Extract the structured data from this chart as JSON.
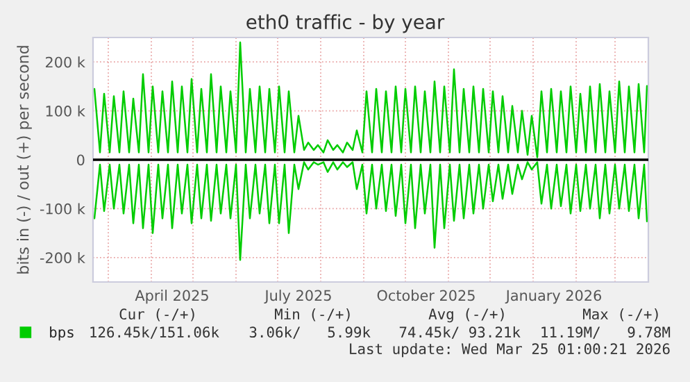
{
  "chart_data": {
    "type": "line",
    "title": "eth0 traffic - by year",
    "ylabel": "bits in (-) / out (+) per second",
    "x": [
      "2025-02-19",
      "2025-02-23",
      "2025-02-26",
      "2025-03-02",
      "2025-03-05",
      "2025-03-09",
      "2025-03-12",
      "2025-03-16",
      "2025-03-19",
      "2025-03-23",
      "2025-03-26",
      "2025-03-30",
      "2025-04-02",
      "2025-04-06",
      "2025-04-09",
      "2025-04-13",
      "2025-04-16",
      "2025-04-20",
      "2025-04-23",
      "2025-04-27",
      "2025-04-30",
      "2025-05-04",
      "2025-05-07",
      "2025-05-11",
      "2025-05-14",
      "2025-05-18",
      "2025-05-21",
      "2025-05-25",
      "2025-05-28",
      "2025-06-01",
      "2025-06-04",
      "2025-06-08",
      "2025-06-11",
      "2025-06-15",
      "2025-06-18",
      "2025-06-22",
      "2025-06-25",
      "2025-06-29",
      "2025-07-02",
      "2025-07-06",
      "2025-07-09",
      "2025-07-13",
      "2025-07-16",
      "2025-07-20",
      "2025-07-23",
      "2025-07-27",
      "2025-07-30",
      "2025-08-03",
      "2025-08-06",
      "2025-08-10",
      "2025-08-13",
      "2025-08-17",
      "2025-08-20",
      "2025-08-24",
      "2025-08-27",
      "2025-08-31",
      "2025-09-03",
      "2025-09-07",
      "2025-09-10",
      "2025-09-14",
      "2025-09-17",
      "2025-09-21",
      "2025-09-24",
      "2025-09-28",
      "2025-10-01",
      "2025-10-05",
      "2025-10-08",
      "2025-10-12",
      "2025-10-15",
      "2025-10-19",
      "2025-10-22",
      "2025-10-26",
      "2025-10-29",
      "2025-11-02",
      "2025-11-05",
      "2025-11-09",
      "2025-11-12",
      "2025-11-16",
      "2025-11-19",
      "2025-11-23",
      "2025-11-26",
      "2025-11-30",
      "2025-12-03",
      "2025-12-07",
      "2025-12-10",
      "2025-12-14",
      "2025-12-17",
      "2025-12-21",
      "2025-12-24",
      "2025-12-28",
      "2025-12-31",
      "2026-01-04",
      "2026-01-07",
      "2026-01-11",
      "2026-01-14",
      "2026-01-18",
      "2026-01-21",
      "2026-01-25",
      "2026-01-28",
      "2026-02-01",
      "2026-02-04",
      "2026-02-08",
      "2026-02-11",
      "2026-02-15",
      "2026-02-18",
      "2026-02-22",
      "2026-02-25",
      "2026-03-01",
      "2026-03-04",
      "2026-03-08",
      "2026-03-11",
      "2026-03-15",
      "2026-03-18",
      "2026-03-22",
      "2026-03-24"
    ],
    "series": [
      {
        "name": "bps",
        "color": "#00cc00",
        "values": [
          145000,
          15000,
          135000,
          15000,
          130000,
          15000,
          140000,
          15000,
          125000,
          15000,
          175000,
          15000,
          150000,
          15000,
          140000,
          15000,
          160000,
          15000,
          150000,
          15000,
          165000,
          15000,
          145000,
          15000,
          175000,
          15000,
          150000,
          15000,
          140000,
          15000,
          240000,
          15000,
          145000,
          15000,
          150000,
          15000,
          145000,
          15000,
          150000,
          15000,
          140000,
          15000,
          90000,
          20000,
          35000,
          20000,
          30000,
          15000,
          40000,
          20000,
          30000,
          15000,
          35000,
          20000,
          60000,
          15000,
          140000,
          15000,
          145000,
          15000,
          140000,
          15000,
          150000,
          15000,
          145000,
          15000,
          150000,
          15000,
          140000,
          15000,
          160000,
          15000,
          150000,
          15000,
          185000,
          15000,
          145000,
          15000,
          150000,
          15000,
          145000,
          15000,
          140000,
          15000,
          130000,
          15000,
          110000,
          15000,
          100000,
          10000,
          90000,
          5000,
          140000,
          15000,
          145000,
          15000,
          140000,
          15000,
          150000,
          15000,
          135000,
          15000,
          150000,
          15000,
          155000,
          15000,
          140000,
          15000,
          160000,
          15000,
          150000,
          15000,
          155000,
          15000,
          151000
        ]
      },
      {
        "color": "#00cc00",
        "values": [
          -120000,
          -10000,
          -105000,
          -10000,
          -100000,
          -10000,
          -110000,
          -10000,
          -130000,
          -10000,
          -140000,
          -10000,
          -150000,
          -10000,
          -120000,
          -10000,
          -140000,
          -10000,
          -110000,
          -10000,
          -130000,
          -10000,
          -120000,
          -10000,
          -125000,
          -10000,
          -110000,
          -10000,
          -120000,
          -10000,
          -205000,
          -10000,
          -120000,
          -10000,
          -110000,
          -10000,
          -130000,
          -10000,
          -130000,
          -10000,
          -150000,
          -10000,
          -60000,
          -5000,
          -20000,
          -5000,
          -10000,
          -5000,
          -25000,
          -5000,
          -20000,
          -5000,
          -15000,
          -5000,
          -60000,
          -10000,
          -110000,
          -10000,
          -100000,
          -10000,
          -105000,
          -10000,
          -115000,
          -10000,
          -130000,
          -10000,
          -140000,
          -10000,
          -110000,
          -10000,
          -180000,
          -10000,
          -140000,
          -10000,
          -125000,
          -10000,
          -120000,
          -10000,
          -110000,
          -10000,
          -100000,
          -10000,
          -85000,
          -10000,
          -80000,
          -10000,
          -70000,
          -10000,
          -40000,
          -5000,
          -20000,
          -5000,
          -90000,
          -10000,
          -100000,
          -10000,
          -95000,
          -10000,
          -110000,
          -10000,
          -105000,
          -10000,
          -100000,
          -10000,
          -120000,
          -10000,
          -110000,
          -10000,
          -100000,
          -10000,
          -105000,
          -10000,
          -120000,
          -10000,
          -126000
        ]
      }
    ],
    "xlim": [
      "2025-02-18",
      "2026-03-25"
    ],
    "xticks": [
      {
        "value": "2025-03-01",
        "label": null
      },
      {
        "value": "2025-04-01",
        "label": null
      },
      {
        "value": "2025-04-16",
        "label": "April 2025"
      },
      {
        "value": "2025-05-01",
        "label": null
      },
      {
        "value": "2025-06-01",
        "label": null
      },
      {
        "value": "2025-07-01",
        "label": null
      },
      {
        "value": "2025-07-16",
        "label": "July 2025"
      },
      {
        "value": "2025-08-01",
        "label": null
      },
      {
        "value": "2025-09-01",
        "label": null
      },
      {
        "value": "2025-10-01",
        "label": null
      },
      {
        "value": "2025-10-16",
        "label": "October 2025"
      },
      {
        "value": "2025-11-01",
        "label": null
      },
      {
        "value": "2025-12-01",
        "label": null
      },
      {
        "value": "2026-01-01",
        "label": null
      },
      {
        "value": "2026-01-16",
        "label": "January 2026"
      },
      {
        "value": "2026-02-01",
        "label": null
      },
      {
        "value": "2026-03-01",
        "label": null
      }
    ],
    "ylim": [
      -250000,
      250000
    ],
    "yticks": [
      {
        "value": -200000,
        "label": "-200 k"
      },
      {
        "value": -100000,
        "label": "-100 k"
      },
      {
        "value": 0,
        "label": "0"
      },
      {
        "value": 100000,
        "label": "100 k"
      },
      {
        "value": 200000,
        "label": "200 k"
      }
    ],
    "ref_lines": [
      {
        "axis": "y",
        "value": 0,
        "color": "#000000"
      }
    ],
    "grid": true,
    "legend": "bottom",
    "annotations": [
      "Cur (-/+)",
      "Min (-/+)",
      "Avg (-/+)",
      "Max (-/+)",
      "126.45k/151.06k",
      "3.06k/   5.99k",
      "74.45k/ 93.21k",
      "11.19M/   9.78M",
      "Last update: Wed Mar 25 01:00:21 2026"
    ]
  }
}
